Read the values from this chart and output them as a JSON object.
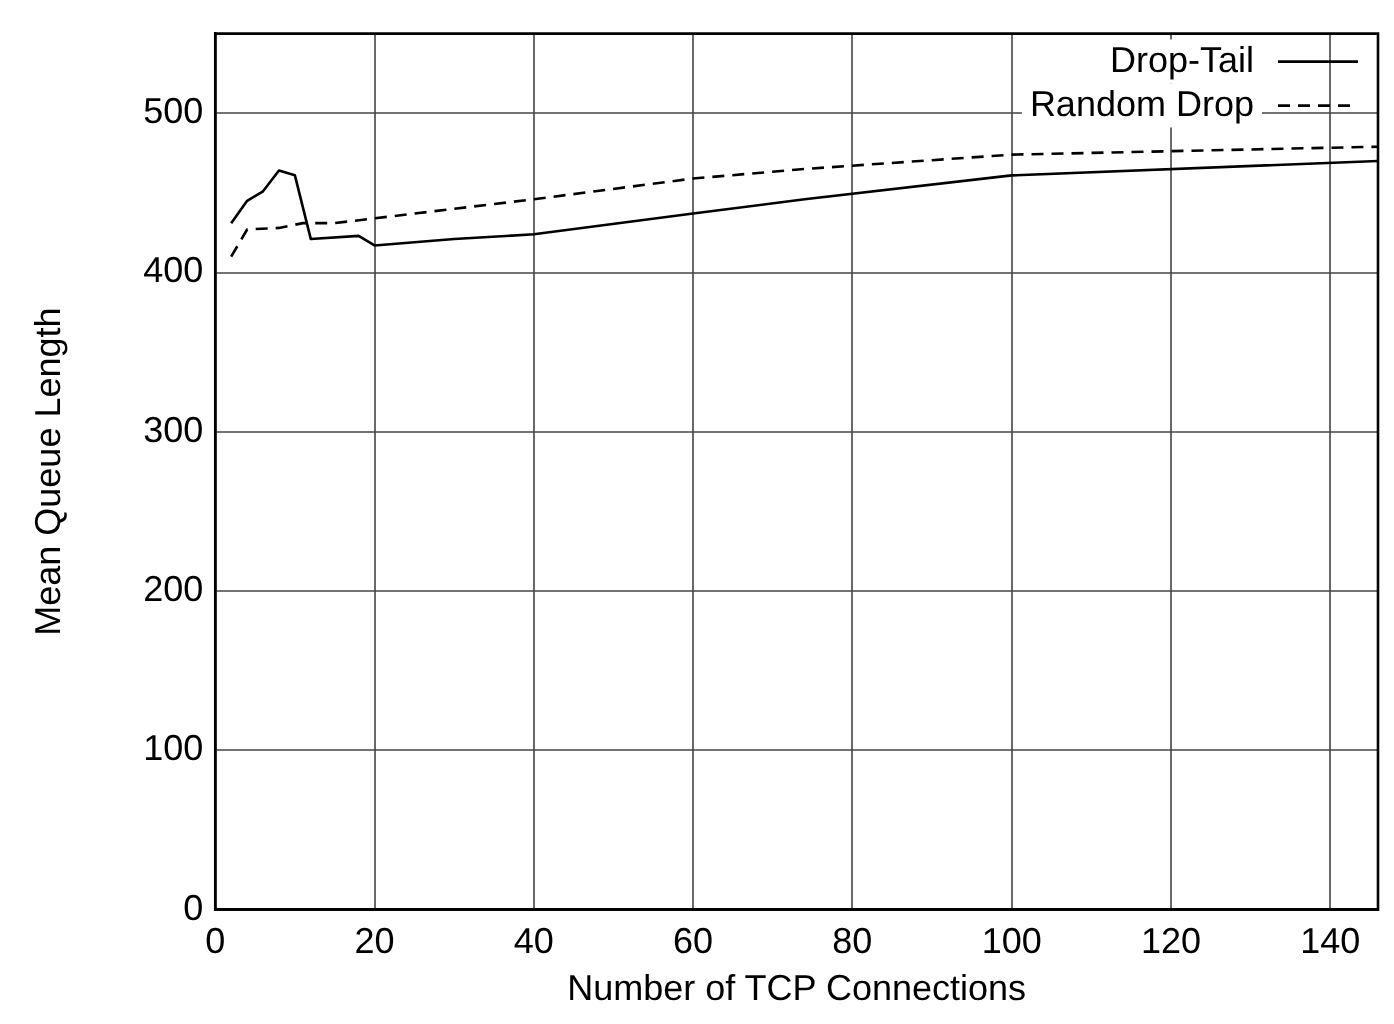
{
  "chart_data": {
    "type": "line",
    "xlabel": "Number of TCP Connections",
    "ylabel": "Mean Queue Length",
    "xlim": [
      0,
      146
    ],
    "xticks": [
      0,
      20,
      40,
      60,
      80,
      100,
      120,
      140
    ],
    "ylim": [
      0,
      550
    ],
    "yticks": [
      0,
      100,
      200,
      300,
      400,
      500
    ],
    "grid": true,
    "legend": "top right",
    "marker": "none",
    "series": [
      {
        "name": "Drop-Tail",
        "color": "#000000",
        "line_style": "solid",
        "x": [
          2,
          4,
          6,
          8,
          10,
          12,
          18,
          20,
          30,
          40,
          60,
          74,
          100,
          146
        ],
        "values": [
          431,
          445,
          451,
          464,
          461,
          421,
          423,
          417,
          421,
          424,
          437,
          446,
          461,
          470
        ]
      },
      {
        "name": "Random Drop",
        "color": "#000000",
        "line_style": "dashed",
        "x": [
          2,
          4,
          8,
          11,
          15,
          20,
          40,
          60,
          74,
          100,
          146
        ],
        "values": [
          410,
          427,
          428,
          431,
          431,
          434,
          446,
          459,
          465,
          474,
          479
        ]
      }
    ]
  }
}
